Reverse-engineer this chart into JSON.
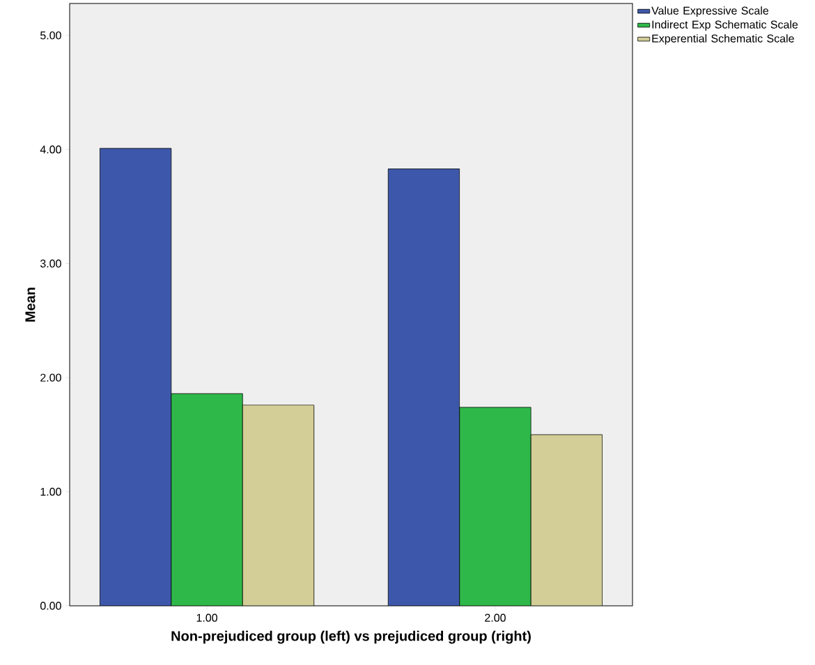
{
  "chart_data": {
    "type": "bar",
    "xlabel": "Non-prejudiced group (left) vs prejudiced group (right)",
    "ylabel": "Mean",
    "categories": [
      "1.00",
      "2.00"
    ],
    "series": [
      {
        "name": "Value Expressive Scale",
        "color": "#3d58aa",
        "values": [
          4.01,
          3.83
        ]
      },
      {
        "name": "Indirect Exp Schematic Scale",
        "color": "#2fb84a",
        "values": [
          1.86,
          1.74
        ]
      },
      {
        "name": "Experential Schematic Scale",
        "color": "#d3ce97",
        "values": [
          1.76,
          1.5
        ]
      }
    ],
    "ylim": [
      0,
      5.28
    ],
    "yticks": [
      {
        "value": 0,
        "label": "0.00"
      },
      {
        "value": 1,
        "label": "1.00"
      },
      {
        "value": 2,
        "label": "2.00"
      },
      {
        "value": 3,
        "label": "3.00"
      },
      {
        "value": 4,
        "label": "4.00"
      },
      {
        "value": 5,
        "label": "5.00"
      }
    ],
    "grid": false,
    "legend": "right"
  }
}
